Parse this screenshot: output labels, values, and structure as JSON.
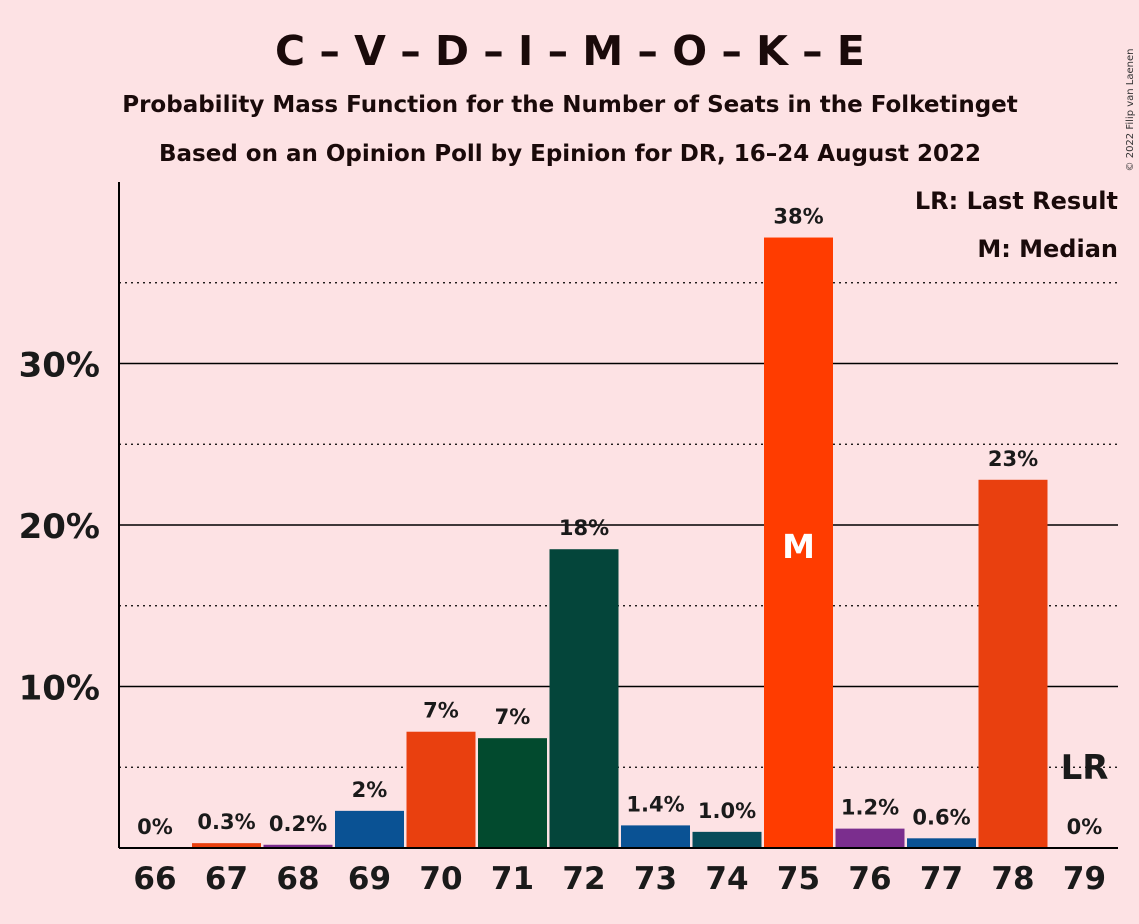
{
  "header": {
    "title": "C – V – D – I – M – O – K – E",
    "subtitle1": "Probability Mass Function for the Number of Seats in the Folketinget",
    "subtitle2": "Based on an Opinion Poll by Epinion for DR, 16–24 August 2022",
    "copyright": "© 2022 Filip van Laenen"
  },
  "legend": {
    "position": "top-right",
    "lr": "LR: Last Result",
    "median": "M: Median"
  },
  "chart_data": {
    "type": "bar",
    "categories": [
      "66",
      "67",
      "68",
      "69",
      "70",
      "71",
      "72",
      "73",
      "74",
      "75",
      "76",
      "77",
      "78",
      "79"
    ],
    "values": [
      0,
      0.3,
      0.2,
      2.3,
      7.2,
      6.8,
      18.5,
      1.4,
      1.0,
      37.8,
      1.2,
      0.6,
      22.8,
      0
    ],
    "value_labels": [
      "0%",
      "0.3%",
      "0.2%",
      "2%",
      "7%",
      "7%",
      "18%",
      "1.4%",
      "1.0%",
      "38%",
      "1.2%",
      "0.6%",
      "23%",
      "0%"
    ],
    "colors": [
      "#E9400F",
      "#E9400F",
      "#7B2E8E",
      "#0A5294",
      "#E9400F",
      "#024A2E",
      "#04453A",
      "#0A5294",
      "#074C5A",
      "#FF3C00",
      "#7B2E8E",
      "#0A5294",
      "#E9400F",
      "#E9400F"
    ],
    "yticks": [
      "10%",
      "20%",
      "30%"
    ],
    "ytick_values": [
      10,
      20,
      30
    ],
    "minor_gridlines": [
      5,
      15,
      25,
      35
    ],
    "ylim": [
      0,
      41
    ],
    "median_index": 9,
    "median_marker": "M",
    "last_result_index": 13,
    "last_result_marker": "LR",
    "grid": true
  }
}
